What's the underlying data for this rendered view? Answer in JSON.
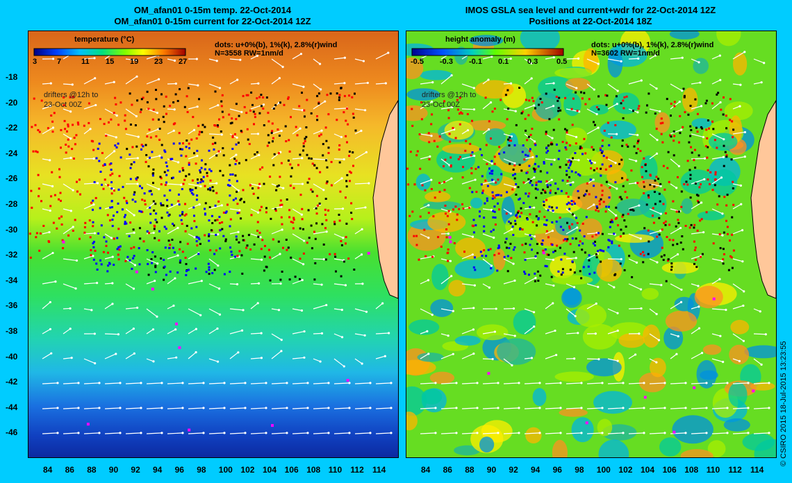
{
  "left": {
    "title_line1": "OM_afan01 0-15m temp. 22-Oct-2014",
    "title_line2": "OM_afan01 0-15m current for 22-Oct-2014 12Z",
    "colorbar_title": "temperature (°C)",
    "colorbar_labels": [
      "3",
      "7",
      "11",
      "15",
      "19",
      "23",
      "27"
    ],
    "dots_text": "dots: u+0%(b), 1%(k), 2.8%(r)wind",
    "n_text": "N=3558  RW=1nm/d",
    "drifters_line1": "drifters @12h to",
    "drifters_line2": "23-Oct 00Z"
  },
  "right": {
    "title_line1": "IMOS GSLA sea level and current+wdr for 22-Oct-2014 12Z",
    "title_line2": "Positions at 22-Oct-2014 18Z",
    "colorbar_title": "height anomaly  (m)",
    "colorbar_labels": [
      "-0.5",
      "-0.3",
      "-0.1",
      "0.1",
      "0.3",
      "0.5"
    ],
    "dots_text": "dots: u+0%(b), 1%(k), 2.8%(r)wind",
    "n_text": "N=3602  RW=1nm/d",
    "drifters_line1": "drifters @12h to",
    "drifters_line2": "23-Oct 00Z"
  },
  "y_ticks": [
    "-18",
    "-20",
    "-22",
    "-24",
    "-26",
    "-28",
    "-30",
    "-32",
    "-34",
    "-36",
    "-38",
    "-40",
    "-42",
    "-44",
    "-46"
  ],
  "x_ticks": [
    "84",
    "86",
    "88",
    "90",
    "92",
    "94",
    "96",
    "98",
    "100",
    "102",
    "104",
    "106",
    "108",
    "110",
    "112",
    "114"
  ],
  "copyright": "© CSIRO 2015    18-Jul-2015 13:23:55",
  "colors": {
    "background": "#00ccff",
    "land": "#ffc79a",
    "drift_blue": "#0000ff",
    "drift_black": "#000000",
    "drift_red": "#ff0000",
    "magenta": "#ff00ff"
  }
}
